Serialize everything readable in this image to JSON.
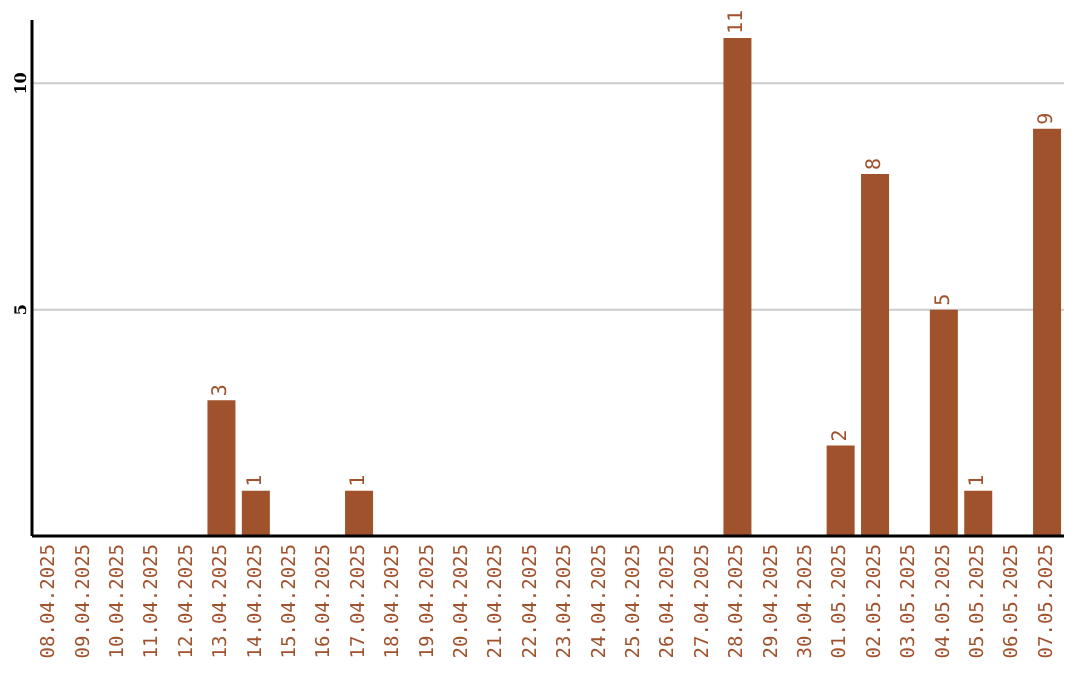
{
  "chart_data": {
    "type": "bar",
    "categories": [
      "08.04.2025",
      "09.04.2025",
      "10.04.2025",
      "11.04.2025",
      "12.04.2025",
      "13.04.2025",
      "14.04.2025",
      "15.04.2025",
      "16.04.2025",
      "17.04.2025",
      "18.04.2025",
      "19.04.2025",
      "20.04.2025",
      "21.04.2025",
      "22.04.2025",
      "23.04.2025",
      "24.04.2025",
      "25.04.2025",
      "26.04.2025",
      "27.04.2025",
      "28.04.2025",
      "29.04.2025",
      "30.04.2025",
      "01.05.2025",
      "02.05.2025",
      "03.05.2025",
      "04.05.2025",
      "05.05.2025",
      "06.05.2025",
      "07.05.2025"
    ],
    "values": [
      0,
      0,
      0,
      0,
      0,
      3,
      1,
      0,
      0,
      1,
      0,
      0,
      0,
      0,
      0,
      0,
      0,
      0,
      0,
      0,
      11,
      0,
      0,
      2,
      8,
      0,
      5,
      1,
      0,
      9
    ],
    "value_labels": [
      null,
      null,
      null,
      null,
      null,
      "3",
      "1",
      null,
      null,
      "1",
      null,
      null,
      null,
      null,
      null,
      null,
      null,
      null,
      null,
      null,
      "11",
      null,
      null,
      "2",
      "8",
      null,
      "5",
      "1",
      null,
      "9"
    ],
    "color": "#a0522d",
    "ylim": [
      0,
      11.4
    ],
    "yticks": [
      5,
      10
    ],
    "grid": "y"
  }
}
